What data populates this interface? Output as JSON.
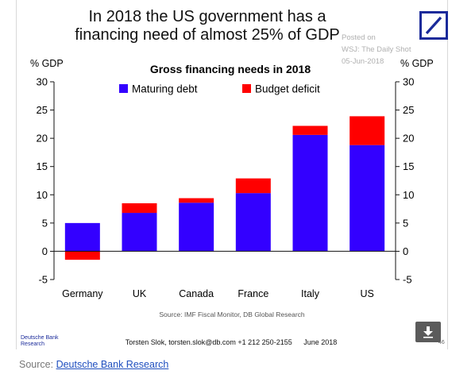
{
  "headline": {
    "line1": "In 2018 the US government has a",
    "line2": "financing need of almost 25% of GDP"
  },
  "watermark": {
    "line1": "Posted on",
    "line2": "WSJ: The Daily Shot",
    "line3": "05-Jun-2018"
  },
  "logo": {
    "icon": "deutsche-bank-slash-logo",
    "color": "#1a2a9a"
  },
  "chart_data": {
    "type": "bar",
    "stacked": true,
    "title": "Gross financing needs in 2018",
    "left_axis_label": "% GDP",
    "right_axis_label": "% GDP",
    "categories": [
      "Germany",
      "UK",
      "Canada",
      "France",
      "Italy",
      "US"
    ],
    "series": [
      {
        "name": "Maturing debt",
        "color": "#3300ff",
        "values": [
          5.0,
          6.8,
          8.6,
          10.3,
          20.6,
          18.8
        ]
      },
      {
        "name": "Budget deficit",
        "color": "#ff0000",
        "values": [
          -1.5,
          1.7,
          0.8,
          2.6,
          1.6,
          5.1
        ]
      }
    ],
    "ylim": [
      -5,
      30
    ],
    "yticks": [
      "-5",
      "0",
      "5",
      "10",
      "15",
      "20",
      "25",
      "30"
    ],
    "legend_position": "top",
    "grid": false,
    "source_note": "Source: IMF Fiscal Monitor, DB Global Research"
  },
  "footer": {
    "bank_name_line1": "Deutsche Bank",
    "bank_name_line2": "Research",
    "author": "Torsten Slok, torsten.slok@db.com  +1 212 250-2155",
    "date": "June 2018",
    "page_number": "46"
  },
  "download_button": {
    "icon": "download-arrow-icon"
  },
  "source_line": {
    "prefix": "Source: ",
    "link_text": "Deutsche Bank Research"
  }
}
